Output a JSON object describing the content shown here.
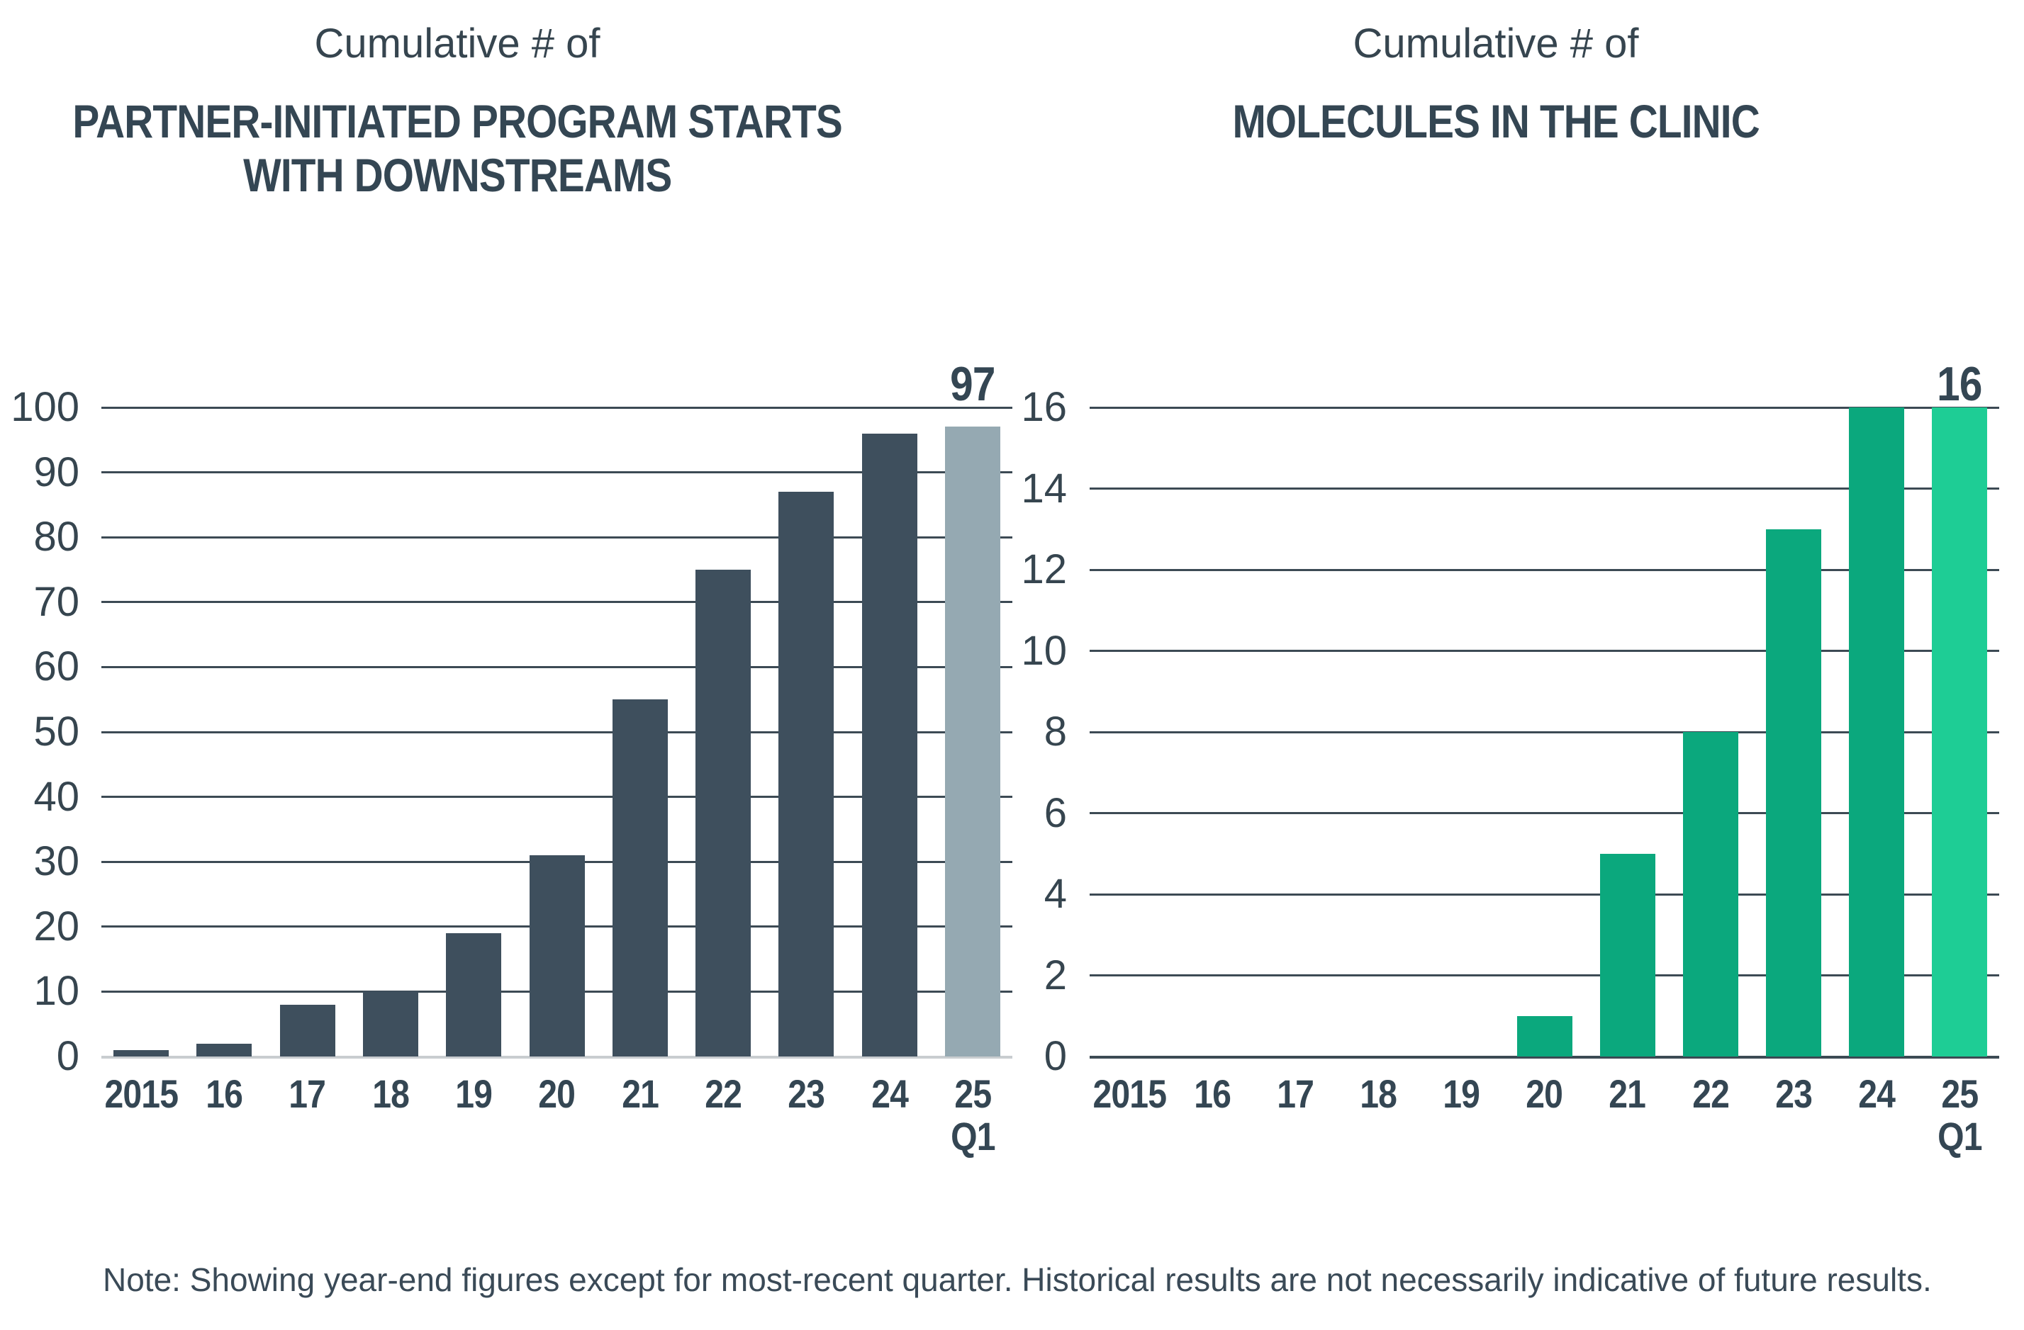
{
  "figure": {
    "note": "Note: Showing year-end figures except for most-recent quarter. Historical results are not necessarily indicative of future results."
  },
  "chart_data": [
    {
      "type": "bar",
      "subtitle": "Cumulative # of",
      "title_lines": [
        "PARTNER-INITIATED PROGRAM STARTS",
        "WITH DOWNSTREAMS"
      ],
      "categories": [
        "2015",
        "16",
        "17",
        "18",
        "19",
        "20",
        "21",
        "22",
        "23",
        "24",
        "25 Q1"
      ],
      "values": [
        1,
        2,
        8,
        10,
        19,
        31,
        55,
        75,
        87,
        96,
        97
      ],
      "ylim": [
        0,
        100
      ],
      "ytick_step": 10,
      "grid": true,
      "legend_position": "none",
      "xlabel": "",
      "ylabel": "",
      "bar_color": "#3E4F5D",
      "last_bar_color": "#95A9B2",
      "gridline_color": "#3C4A54",
      "baseline_color": "#C9CDD0",
      "last_value_label": "97"
    },
    {
      "type": "bar",
      "subtitle": "Cumulative # of",
      "title_lines": [
        "MOLECULES IN THE CLINIC"
      ],
      "categories": [
        "2015",
        "16",
        "17",
        "18",
        "19",
        "20",
        "21",
        "22",
        "23",
        "24",
        "25 Q1"
      ],
      "values": [
        0,
        0,
        0,
        0,
        0,
        1,
        5,
        8,
        13,
        16,
        16
      ],
      "ylim": [
        0,
        16
      ],
      "ytick_step": 2,
      "grid": true,
      "legend_position": "none",
      "xlabel": "",
      "ylabel": "",
      "bar_color": "#0BA87D",
      "last_bar_color": "#1ECD95",
      "gridline_color": "#3C4A54",
      "baseline_color": "#3C4A54",
      "last_value_label": "16"
    }
  ]
}
